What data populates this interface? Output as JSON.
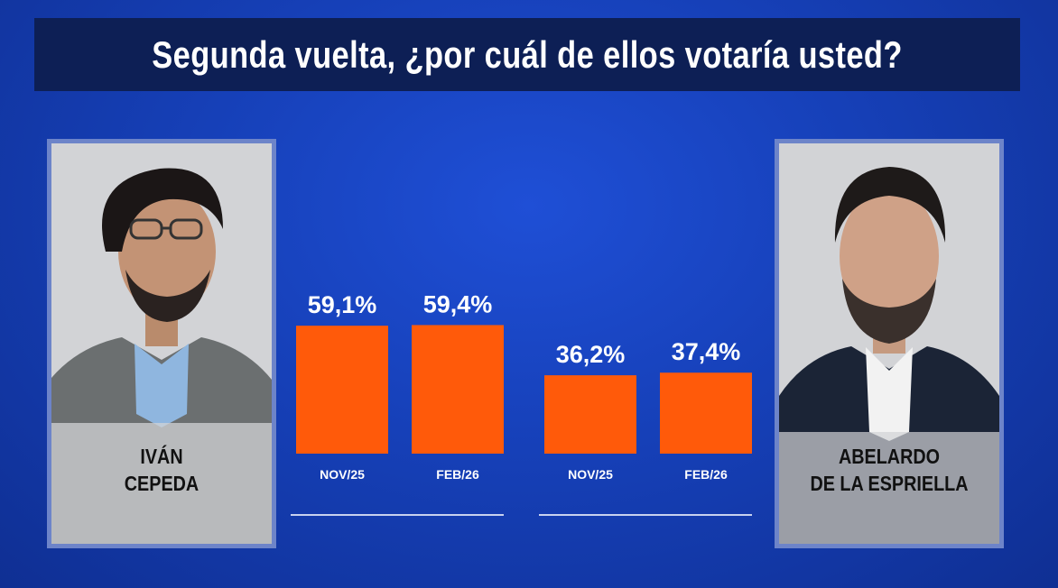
{
  "title": "Segunda vuelta, ¿por cuál de ellos votaría usted?",
  "candidates": [
    {
      "name_line1": "IVÁN",
      "name_line2": "CEPEDA"
    },
    {
      "name_line1": "ABELARDO",
      "name_line2": "DE LA ESPRIELLA"
    }
  ],
  "colors": {
    "bar": "#ff5a0a",
    "background": "#1640b8",
    "title_bar": "#0d1f55"
  },
  "chart_data": {
    "type": "bar",
    "groups": [
      {
        "candidate": "IVÁN CEPEDA",
        "categories": [
          "NOV/25",
          "FEB/26"
        ],
        "values": [
          59.1,
          59.4
        ],
        "labels": [
          "59,1%",
          "59,4%"
        ]
      },
      {
        "candidate": "ABELARDO DE LA ESPRIELLA",
        "categories": [
          "NOV/25",
          "FEB/26"
        ],
        "values": [
          36.2,
          37.4
        ],
        "labels": [
          "36,2%",
          "37,4%"
        ]
      }
    ],
    "ylim": [
      0,
      100
    ],
    "unit": "%",
    "grid": false,
    "legend": "none"
  }
}
